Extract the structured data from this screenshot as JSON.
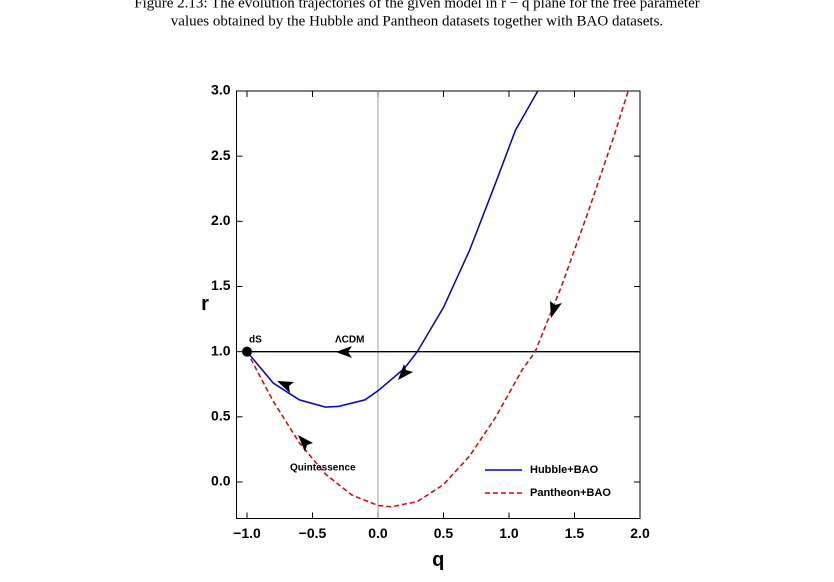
{
  "caption": [
    "Figure 2.13: The evolution trajectories of the given model in r − q plane for the free parameter",
    "values obtained by the Hubble and Pantheon datasets together with BAO datasets."
  ],
  "chart_data": {
    "type": "line",
    "xlabel": "q",
    "ylabel": "r",
    "xlim": [
      -1.08,
      2.0
    ],
    "ylim": [
      -0.28,
      3.0
    ],
    "xticks": [
      {
        "value": -1.0,
        "label": "−1.0"
      },
      {
        "value": -0.5,
        "label": "−0.5"
      },
      {
        "value": 0.0,
        "label": "0.0"
      },
      {
        "value": 0.5,
        "label": "0.5"
      },
      {
        "value": 1.0,
        "label": "1.0"
      },
      {
        "value": 1.5,
        "label": "1.5"
      },
      {
        "value": 2.0,
        "label": "2.0"
      }
    ],
    "yticks": [
      {
        "value": 0.0,
        "label": "0.0"
      },
      {
        "value": 0.5,
        "label": "0.5"
      },
      {
        "value": 1.0,
        "label": "1.0"
      },
      {
        "value": 1.5,
        "label": "1.5"
      },
      {
        "value": 2.0,
        "label": "2.0"
      },
      {
        "value": 2.5,
        "label": "2.5"
      },
      {
        "value": 3.0,
        "label": "3.0"
      }
    ],
    "series": [
      {
        "name": "Hubble+BAO",
        "color": "#0000cc",
        "dash": false,
        "x": [
          -1,
          -0.8,
          -0.6,
          -0.4,
          -0.3,
          -0.1,
          0,
          0.2,
          0.3,
          0.5,
          0.7,
          0.9,
          1.05,
          1.22
        ],
        "values": [
          1,
          0.76,
          0.63,
          0.575,
          0.58,
          0.63,
          0.7,
          0.87,
          1.0,
          1.34,
          1.78,
          2.3,
          2.7,
          3.0
        ]
      },
      {
        "name": "Pantheon+BAO",
        "color": "#dd0000",
        "dash": true,
        "x": [
          -1,
          -0.8,
          -0.6,
          -0.4,
          -0.2,
          0,
          0.1,
          0.3,
          0.5,
          0.7,
          0.9,
          1.1,
          1.2,
          1.4,
          1.6,
          1.8,
          1.91
        ],
        "values": [
          1,
          0.62,
          0.3,
          0.06,
          -0.1,
          -0.18,
          -0.19,
          -0.15,
          -0.02,
          0.2,
          0.5,
          0.86,
          1.0,
          1.5,
          2.06,
          2.65,
          3.0
        ]
      }
    ],
    "reference_line": {
      "label": "ΛCDM",
      "value": 1.0
    },
    "point": {
      "label": "dS",
      "x": -1,
      "y": 1
    },
    "annotation": "Quintessence"
  }
}
